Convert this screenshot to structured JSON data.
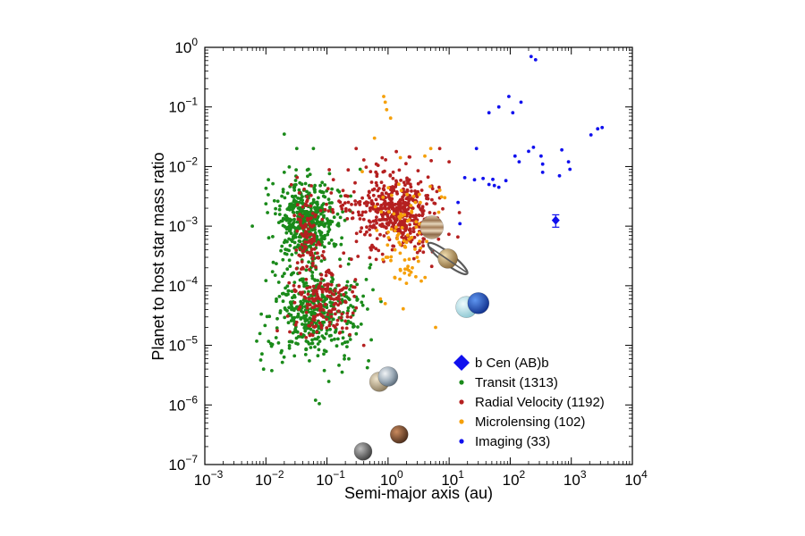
{
  "chart_data": {
    "type": "scatter",
    "title": "",
    "xlabel": "Semi-major axis (au)",
    "ylabel": "Planet to host star mass ratio",
    "xscale": "log",
    "yscale": "log",
    "xlim": [
      0.001,
      10000
    ],
    "ylim": [
      1e-07,
      1
    ],
    "x_ticks": [
      {
        "value": 0.001,
        "base": "10",
        "exp": "−3"
      },
      {
        "value": 0.01,
        "base": "10",
        "exp": "−2"
      },
      {
        "value": 0.1,
        "base": "10",
        "exp": "−1"
      },
      {
        "value": 1,
        "base": "10",
        "exp": "0"
      },
      {
        "value": 10,
        "base": "10",
        "exp": "1"
      },
      {
        "value": 100,
        "base": "10",
        "exp": "2"
      },
      {
        "value": 1000,
        "base": "10",
        "exp": "3"
      },
      {
        "value": 10000,
        "base": "10",
        "exp": "4"
      }
    ],
    "y_ticks": [
      {
        "value": 1e-07,
        "base": "10",
        "exp": "−7"
      },
      {
        "value": 1e-06,
        "base": "10",
        "exp": "−6"
      },
      {
        "value": 1e-05,
        "base": "10",
        "exp": "−5"
      },
      {
        "value": 0.0001,
        "base": "10",
        "exp": "−4"
      },
      {
        "value": 0.001,
        "base": "10",
        "exp": "−3"
      },
      {
        "value": 0.01,
        "base": "10",
        "exp": "−2"
      },
      {
        "value": 0.1,
        "base": "10",
        "exp": "−1"
      },
      {
        "value": 1,
        "base": "10",
        "exp": "0"
      }
    ],
    "grid": false,
    "legend_position": "bottom-right",
    "highlight": {
      "name": "b Cen (AB)b",
      "color": "#1010ee",
      "marker": "diamond",
      "x": 556,
      "y": 0.00125,
      "y_err": [
        0.00096,
        0.00155
      ]
    },
    "series": [
      {
        "name": "Transit (1313)",
        "color": "#1a8a1a",
        "marker": "circle",
        "clusters": [
          {
            "x_center": 0.045,
            "x_spread_dex": 0.25,
            "y_center": 0.0012,
            "y_spread_dex": 0.33,
            "count": 460
          },
          {
            "x_center": 0.06,
            "x_spread_dex": 0.38,
            "y_center": 3.5e-05,
            "y_spread_dex": 0.4,
            "count": 420
          }
        ],
        "points": [
          {
            "x": 0.006,
            "y": 0.001
          },
          {
            "x": 0.02,
            "y": 0.035
          },
          {
            "x": 0.032,
            "y": 0.02
          },
          {
            "x": 0.06,
            "y": 0.02
          },
          {
            "x": 0.065,
            "y": 1.2e-06
          },
          {
            "x": 0.075,
            "y": 1.05e-06
          },
          {
            "x": 0.13,
            "y": 0.0005
          },
          {
            "x": 0.011,
            "y": 0.006
          },
          {
            "x": 0.02,
            "y": 0.008
          },
          {
            "x": 0.15,
            "y": 0.004
          },
          {
            "x": 0.5,
            "y": 0.0002
          },
          {
            "x": 0.35,
            "y": 0.009
          }
        ]
      },
      {
        "name": "Radial Velocity (1192)",
        "color": "#b52020",
        "marker": "circle",
        "clusters": [
          {
            "x_center": 1.6,
            "x_spread_dex": 0.3,
            "y_center": 0.0018,
            "y_spread_dex": 0.32,
            "count": 450
          },
          {
            "x_center": 0.09,
            "x_spread_dex": 0.28,
            "y_center": 5e-05,
            "y_spread_dex": 0.35,
            "count": 180
          },
          {
            "x_center": 0.05,
            "x_spread_dex": 0.12,
            "y_center": 0.0008,
            "y_spread_dex": 0.28,
            "count": 90
          },
          {
            "x_center": 0.3,
            "x_spread_dex": 0.4,
            "y_center": 0.0015,
            "y_spread_dex": 0.4,
            "count": 80
          }
        ],
        "points": [
          {
            "x": 0.3,
            "y": 0.02
          },
          {
            "x": 7,
            "y": 0.02
          },
          {
            "x": 10,
            "y": 0.012
          },
          {
            "x": 0.4,
            "y": 1e-05
          }
        ]
      },
      {
        "name": "Microlensing (102)",
        "color": "#f5a00a",
        "marker": "circle",
        "clusters": [
          {
            "x_center": 1.8,
            "x_spread_dex": 0.25,
            "y_center": 0.0008,
            "y_spread_dex": 0.45,
            "count": 80
          }
        ],
        "points": [
          {
            "x": 0.85,
            "y": 0.15
          },
          {
            "x": 0.9,
            "y": 0.12
          },
          {
            "x": 0.95,
            "y": 0.09
          },
          {
            "x": 1.1,
            "y": 0.065
          },
          {
            "x": 0.6,
            "y": 0.03
          },
          {
            "x": 6,
            "y": 2e-05
          },
          {
            "x": 1.6,
            "y": 0.00018
          },
          {
            "x": 1.9,
            "y": 0.00019
          },
          {
            "x": 2.2,
            "y": 0.00018
          },
          {
            "x": 2.5,
            "y": 0.0002
          },
          {
            "x": 0.9,
            "y": 5e-05
          },
          {
            "x": 0.75,
            "y": 6e-05
          },
          {
            "x": 3.5,
            "y": 0.00012
          },
          {
            "x": 4,
            "y": 0.015
          },
          {
            "x": 5,
            "y": 0.02
          },
          {
            "x": 2.8,
            "y": 0.0025
          },
          {
            "x": 7,
            "y": 0.004
          },
          {
            "x": 8.5,
            "y": 0.003
          },
          {
            "x": 1.3,
            "y": 0.0004
          },
          {
            "x": 2.2,
            "y": 0.0006
          },
          {
            "x": 2,
            "y": 0.00011
          },
          {
            "x": 3,
            "y": 0.0003
          }
        ]
      },
      {
        "name": "Imaging (33)",
        "color": "#1010ee",
        "marker": "circle",
        "clusters": [],
        "points": [
          {
            "x": 220,
            "y": 0.7
          },
          {
            "x": 260,
            "y": 0.62
          },
          {
            "x": 95,
            "y": 0.15
          },
          {
            "x": 150,
            "y": 0.12
          },
          {
            "x": 65,
            "y": 0.1
          },
          {
            "x": 45,
            "y": 0.08
          },
          {
            "x": 110,
            "y": 0.08
          },
          {
            "x": 3200,
            "y": 0.045
          },
          {
            "x": 2700,
            "y": 0.043
          },
          {
            "x": 2100,
            "y": 0.034
          },
          {
            "x": 28,
            "y": 0.02
          },
          {
            "x": 200,
            "y": 0.018
          },
          {
            "x": 240,
            "y": 0.021
          },
          {
            "x": 320,
            "y": 0.015
          },
          {
            "x": 340,
            "y": 0.011
          },
          {
            "x": 340,
            "y": 0.008
          },
          {
            "x": 700,
            "y": 0.019
          },
          {
            "x": 900,
            "y": 0.012
          },
          {
            "x": 950,
            "y": 0.009
          },
          {
            "x": 640,
            "y": 0.007
          },
          {
            "x": 140,
            "y": 0.012
          },
          {
            "x": 120,
            "y": 0.015
          },
          {
            "x": 18,
            "y": 0.0065
          },
          {
            "x": 26,
            "y": 0.006
          },
          {
            "x": 36,
            "y": 0.0063
          },
          {
            "x": 52,
            "y": 0.0061
          },
          {
            "x": 85,
            "y": 0.0058
          },
          {
            "x": 65,
            "y": 0.0045
          },
          {
            "x": 45,
            "y": 0.005
          },
          {
            "x": 55,
            "y": 0.0048
          },
          {
            "x": 14,
            "y": 0.0025
          },
          {
            "x": 15,
            "y": 0.0011
          }
        ]
      }
    ],
    "solar_system_planets": [
      {
        "icon": "mercury-icon",
        "x": 0.39,
        "y": 1.66e-07,
        "fill": "#7a7a7a"
      },
      {
        "icon": "mars-icon",
        "x": 1.52,
        "y": 3.2e-07,
        "fill": "#8a5a3c"
      },
      {
        "icon": "venus-icon",
        "x": 0.72,
        "y": 2.45e-06,
        "fill": "#c8b89a"
      },
      {
        "icon": "earth-icon",
        "x": 1.0,
        "y": 3e-06,
        "fill": "#a8b8c8"
      },
      {
        "icon": "uranus-icon",
        "x": 19.2,
        "y": 4.4e-05,
        "fill": "#bfe6ec"
      },
      {
        "icon": "neptune-icon",
        "x": 30.1,
        "y": 5.1e-05,
        "fill": "#2f66d6"
      },
      {
        "icon": "saturn-icon",
        "x": 9.5,
        "y": 0.000286,
        "fill": "#c9a96e"
      },
      {
        "icon": "jupiter-icon",
        "x": 5.2,
        "y": 0.000955,
        "fill": "#b49068"
      }
    ]
  }
}
